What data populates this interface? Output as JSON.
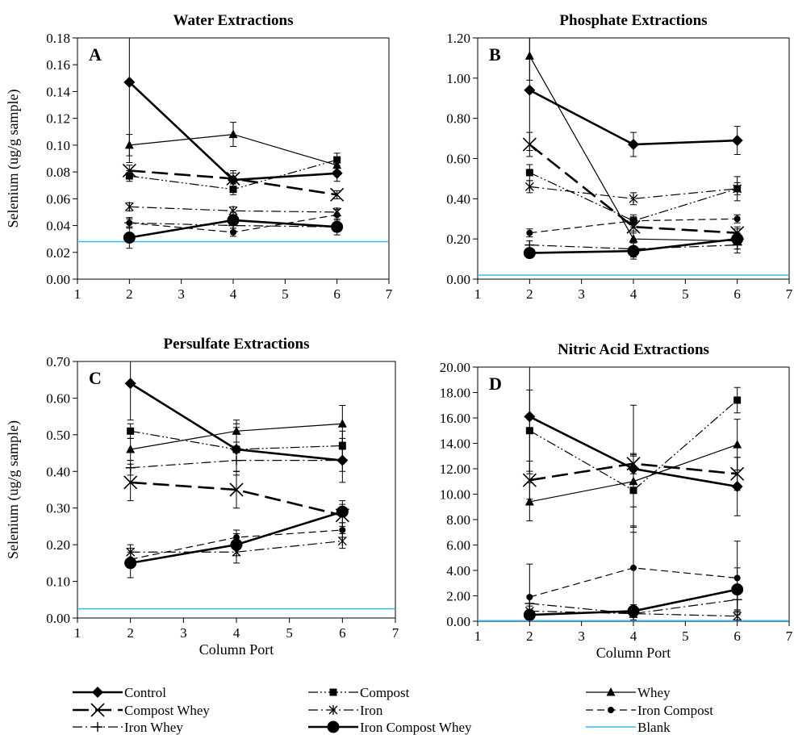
{
  "figure": {
    "legend_placement": "bottom",
    "legend_entries": [
      {
        "key": "control",
        "label": "Control"
      },
      {
        "key": "compost",
        "label": "Compost"
      },
      {
        "key": "whey",
        "label": "Whey"
      },
      {
        "key": "compost_whey",
        "label": "Compost Whey"
      },
      {
        "key": "iron",
        "label": "Iron"
      },
      {
        "key": "iron_compost",
        "label": "Iron Compost"
      },
      {
        "key": "iron_whey",
        "label": "Iron Whey"
      },
      {
        "key": "iron_compost_whey",
        "label": "Iron Compost Whey"
      },
      {
        "key": "blank",
        "label": "Blank"
      }
    ],
    "series_styles": {
      "control": {
        "dash": "solid",
        "width": "thick",
        "marker": "diamond",
        "color": "#000000"
      },
      "compost": {
        "dash": "dash-dot-dot",
        "width": "thin",
        "marker": "square",
        "color": "#000000"
      },
      "whey": {
        "dash": "solid",
        "width": "thin",
        "marker": "triangle",
        "color": "#000000"
      },
      "compost_whey": {
        "dash": "long-dash",
        "width": "thick",
        "marker": "x",
        "color": "#000000"
      },
      "iron": {
        "dash": "dash-dot",
        "width": "thin",
        "marker": "asterisk",
        "color": "#000000"
      },
      "iron_compost": {
        "dash": "dash",
        "width": "thin",
        "marker": "circle-small",
        "color": "#000000"
      },
      "iron_whey": {
        "dash": "dash-dot",
        "width": "thin",
        "marker": "plus",
        "color": "#000000"
      },
      "iron_compost_whey": {
        "dash": "solid",
        "width": "thick",
        "marker": "circle-large",
        "color": "#000000"
      },
      "blank": {
        "dash": "solid",
        "width": "thin",
        "marker": "none",
        "color": "#33bbee"
      }
    }
  },
  "chart_data": [
    {
      "type": "line",
      "panel": "A",
      "title": "Water Extractions",
      "xlabel": "",
      "ylabel": "Selenium (ug/g sample)",
      "xlim": [
        1,
        7
      ],
      "ylim": [
        0,
        0.18
      ],
      "xticks": [
        1,
        2,
        3,
        4,
        5,
        6,
        7
      ],
      "yticks": [
        0,
        0.02,
        0.04,
        0.06,
        0.08,
        0.1,
        0.12,
        0.14,
        0.16,
        0.18
      ],
      "ytick_labels": [
        "0.00",
        "0.02",
        "0.04",
        "0.06",
        "0.08",
        "0.10",
        "0.12",
        "0.14",
        "0.16",
        "0.18"
      ],
      "x": [
        2,
        4,
        6
      ],
      "blank": 0.028,
      "series": [
        {
          "key": "control",
          "values": [
            0.147,
            0.074,
            0.079
          ],
          "errors": [
            0.06,
            0.005,
            0.006
          ]
        },
        {
          "key": "compost",
          "values": [
            0.077,
            0.067,
            0.089
          ],
          "errors": [
            0.004,
            0.004,
            0.005
          ]
        },
        {
          "key": "whey",
          "values": [
            0.1,
            0.108,
            0.085
          ],
          "errors": [
            0.008,
            0.009,
            0.004
          ]
        },
        {
          "key": "compost_whey",
          "values": [
            0.081,
            0.075,
            0.063
          ],
          "errors": [
            0.004,
            0.006,
            0.003
          ]
        },
        {
          "key": "iron",
          "values": [
            0.054,
            0.051,
            0.05
          ],
          "errors": [
            0.003,
            0.003,
            0.003
          ]
        },
        {
          "key": "iron_compost",
          "values": [
            0.042,
            0.035,
            0.048
          ],
          "errors": [
            0.003,
            0.003,
            0.004
          ]
        },
        {
          "key": "iron_whey",
          "values": [
            0.042,
            0.04,
            0.039
          ],
          "errors": [
            0.004,
            0.004,
            0.003
          ]
        },
        {
          "key": "iron_compost_whey",
          "values": [
            0.031,
            0.044,
            0.039
          ],
          "errors": [
            0.008,
            0.006,
            0.006
          ]
        }
      ]
    },
    {
      "type": "line",
      "panel": "B",
      "title": "Phosphate Extractions",
      "xlabel": "",
      "ylabel": "",
      "xlim": [
        1,
        7
      ],
      "ylim": [
        0,
        1.2
      ],
      "xticks": [
        1,
        2,
        3,
        4,
        5,
        6,
        7
      ],
      "yticks": [
        0,
        0.2,
        0.4,
        0.6,
        0.8,
        1.0,
        1.2
      ],
      "ytick_labels": [
        "0.00",
        "0.20",
        "0.40",
        "0.60",
        "0.80",
        "1.00",
        "1.20"
      ],
      "x": [
        2,
        4,
        6
      ],
      "blank": 0.02,
      "series": [
        {
          "key": "control",
          "values": [
            0.94,
            0.67,
            0.69
          ],
          "errors": [
            0.3,
            0.06,
            0.07
          ]
        },
        {
          "key": "compost",
          "values": [
            0.53,
            0.29,
            0.45
          ],
          "errors": [
            0.04,
            0.03,
            0.06
          ]
        },
        {
          "key": "whey",
          "values": [
            1.11,
            0.2,
            0.19
          ],
          "errors": [
            0.12,
            0.04,
            0.04
          ]
        },
        {
          "key": "compost_whey",
          "values": [
            0.67,
            0.26,
            0.23
          ],
          "errors": [
            0.06,
            0.03,
            0.03
          ]
        },
        {
          "key": "iron",
          "values": [
            0.46,
            0.4,
            0.45
          ],
          "errors": [
            0.03,
            0.03,
            0.03
          ]
        },
        {
          "key": "iron_compost",
          "values": [
            0.23,
            0.29,
            0.3
          ],
          "errors": [
            0.02,
            0.02,
            0.02
          ]
        },
        {
          "key": "iron_whey",
          "values": [
            0.17,
            0.15,
            0.17
          ],
          "errors": [
            0.02,
            0.04,
            0.04
          ]
        },
        {
          "key": "iron_compost_whey",
          "values": [
            0.13,
            0.14,
            0.2
          ],
          "errors": [
            0.02,
            0.04,
            0.05
          ]
        }
      ]
    },
    {
      "type": "line",
      "panel": "C",
      "title": "Persulfate Extractions",
      "xlabel": "Column Port",
      "ylabel": "Selenium (ug/g sample)",
      "xlim": [
        1,
        7
      ],
      "ylim": [
        0,
        0.7
      ],
      "xticks": [
        1,
        2,
        3,
        4,
        5,
        6,
        7
      ],
      "yticks": [
        0,
        0.1,
        0.2,
        0.3,
        0.4,
        0.5,
        0.6,
        0.7
      ],
      "ytick_labels": [
        "0.00",
        "0.10",
        "0.20",
        "0.30",
        "0.40",
        "0.50",
        "0.60",
        "0.70"
      ],
      "x": [
        2,
        4,
        6
      ],
      "blank": 0.025,
      "series": [
        {
          "key": "control",
          "values": [
            0.64,
            0.46,
            0.43
          ],
          "errors": [
            0.1,
            0.07,
            0.06
          ]
        },
        {
          "key": "compost",
          "values": [
            0.51,
            0.46,
            0.47
          ],
          "errors": [
            0.02,
            0.06,
            0.04
          ]
        },
        {
          "key": "whey",
          "values": [
            0.46,
            0.51,
            0.53
          ],
          "errors": [
            0.03,
            0.03,
            0.05
          ]
        },
        {
          "key": "compost_whey",
          "values": [
            0.37,
            0.35,
            0.28
          ],
          "errors": [
            0.05,
            0.05,
            0.03
          ]
        },
        {
          "key": "iron",
          "values": [
            0.18,
            0.18,
            0.21
          ],
          "errors": [
            0.02,
            0.03,
            0.02
          ]
        },
        {
          "key": "iron_compost",
          "values": [
            0.16,
            0.22,
            0.24
          ],
          "errors": [
            0.02,
            0.02,
            0.02
          ]
        },
        {
          "key": "iron_whey",
          "values": [
            0.41,
            0.43,
            0.43
          ],
          "errors": [
            0.02,
            0.03,
            0.03
          ]
        },
        {
          "key": "iron_compost_whey",
          "values": [
            0.15,
            0.2,
            0.29
          ],
          "errors": [
            0.04,
            0.03,
            0.03
          ]
        }
      ]
    },
    {
      "type": "line",
      "panel": "D",
      "title": "Nitric Acid Extractions",
      "xlabel": "Column Port",
      "ylabel": "",
      "xlim": [
        1,
        7
      ],
      "ylim": [
        0,
        20
      ],
      "xticks": [
        1,
        2,
        3,
        4,
        5,
        6,
        7
      ],
      "yticks": [
        0,
        2,
        4,
        6,
        8,
        10,
        12,
        14,
        16,
        18,
        20
      ],
      "ytick_labels": [
        "0.00",
        "2.00",
        "4.00",
        "6.00",
        "8.00",
        "10.00",
        "12.00",
        "14.00",
        "16.00",
        "18.00",
        "20.00"
      ],
      "x": [
        2,
        4,
        6
      ],
      "blank": 0.05,
      "series": [
        {
          "key": "control",
          "values": [
            16.1,
            12.0,
            10.6
          ],
          "errors": [
            4.5,
            5.0,
            2.3
          ]
        },
        {
          "key": "compost",
          "values": [
            15.0,
            10.3,
            17.4
          ],
          "errors": [
            3.2,
            2.8,
            1.0
          ]
        },
        {
          "key": "whey",
          "values": [
            9.4,
            11.0,
            13.9
          ],
          "errors": [
            1.5,
            2.0,
            2.0
          ]
        },
        {
          "key": "compost_whey",
          "values": [
            11.1,
            12.4,
            11.6
          ],
          "errors": [
            1.5,
            0.8,
            1.3
          ]
        },
        {
          "key": "iron",
          "values": [
            0.8,
            0.6,
            0.4
          ],
          "errors": [
            0.4,
            0.3,
            0.3
          ]
        },
        {
          "key": "iron_compost",
          "values": [
            1.9,
            4.2,
            3.4
          ],
          "errors": [
            2.6,
            3.2,
            2.9
          ]
        },
        {
          "key": "iron_whey",
          "values": [
            1.4,
            0.6,
            1.7
          ],
          "errors": [
            0.6,
            0.5,
            0.8
          ]
        },
        {
          "key": "iron_compost_whey",
          "values": [
            0.5,
            0.8,
            2.5
          ],
          "errors": [
            0.4,
            0.5,
            1.7
          ]
        }
      ]
    }
  ]
}
